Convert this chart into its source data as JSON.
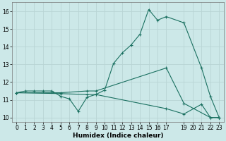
{
  "xlabel": "Humidex (Indice chaleur)",
  "bg_color": "#cce8e8",
  "grid_color_major": "#b8d4d4",
  "grid_color_minor": "#d4e8e8",
  "line_color": "#1a7060",
  "xlim": [
    -0.5,
    23.5
  ],
  "ylim": [
    9.75,
    16.5
  ],
  "xticks": [
    0,
    1,
    2,
    3,
    4,
    5,
    6,
    7,
    8,
    9,
    10,
    11,
    12,
    13,
    14,
    15,
    16,
    17,
    19,
    20,
    21,
    22,
    23
  ],
  "yticks": [
    10,
    11,
    12,
    13,
    14,
    15,
    16
  ],
  "series": [
    {
      "x": [
        0,
        1,
        2,
        3,
        4,
        5,
        6,
        7,
        8,
        9,
        10,
        11,
        12,
        13,
        14,
        15,
        16,
        17,
        19,
        21,
        22,
        23
      ],
      "y": [
        11.4,
        11.5,
        11.5,
        11.5,
        11.5,
        11.2,
        11.05,
        10.35,
        11.15,
        11.3,
        11.55,
        13.05,
        13.65,
        14.1,
        14.7,
        16.1,
        15.5,
        15.7,
        15.35,
        12.8,
        11.2,
        10.0
      ]
    },
    {
      "x": [
        0,
        5,
        8,
        9,
        17,
        19,
        22,
        23
      ],
      "y": [
        11.4,
        11.4,
        11.5,
        11.5,
        12.8,
        10.8,
        10.0,
        10.0
      ]
    },
    {
      "x": [
        0,
        5,
        8,
        9,
        17,
        19,
        21,
        22,
        23
      ],
      "y": [
        11.4,
        11.35,
        11.3,
        11.3,
        10.5,
        10.2,
        10.75,
        10.0,
        10.0
      ]
    }
  ]
}
